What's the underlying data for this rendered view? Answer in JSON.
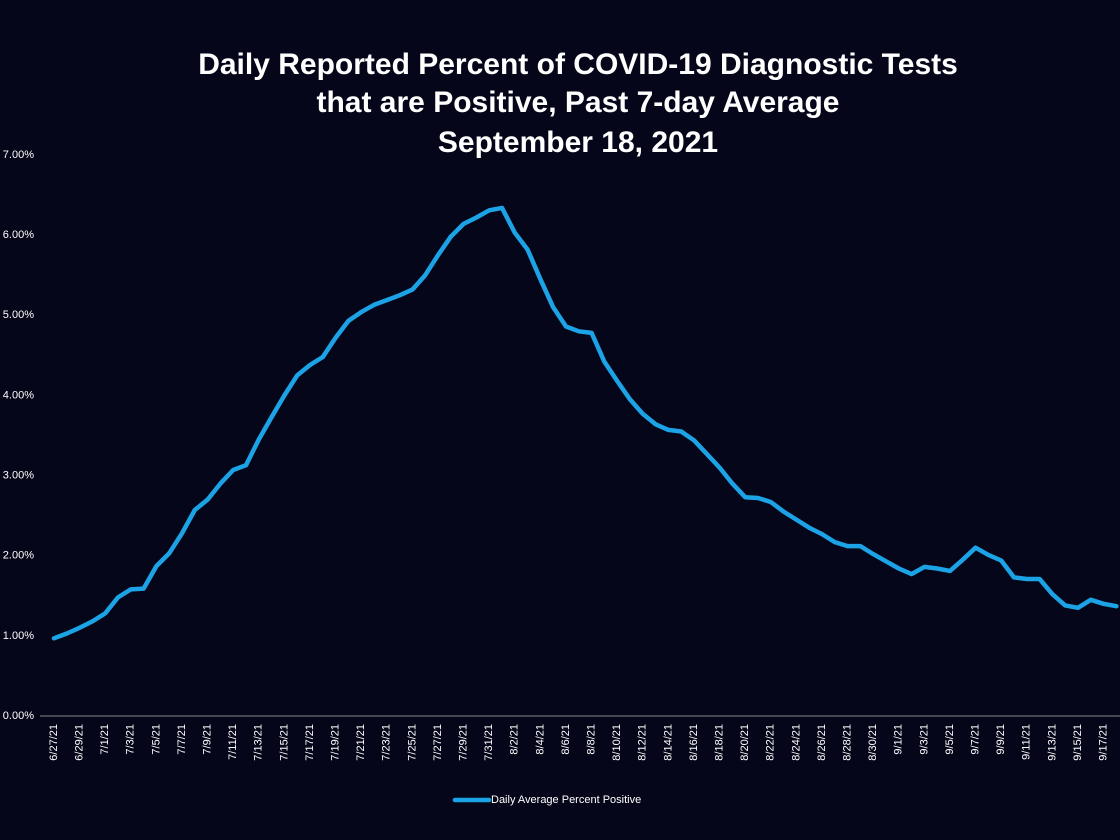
{
  "chart_data": {
    "type": "line",
    "title": [
      "Daily Reported Percent of COVID-19 Diagnostic Tests",
      "that are Positive, Past 7-day Average"
    ],
    "subtitle": "September 18, 2021",
    "categories": [
      "6/27/21",
      null,
      "6/29/21",
      null,
      "7/1/21",
      null,
      "7/3/21",
      null,
      "7/5/21",
      null,
      "7/7/21",
      null,
      "7/9/21",
      null,
      "7/11/21",
      null,
      "7/13/21",
      null,
      "7/15/21",
      null,
      "7/17/21",
      null,
      "7/19/21",
      null,
      "7/21/21",
      null,
      "7/23/21",
      null,
      "7/25/21",
      null,
      "7/27/21",
      null,
      "7/29/21",
      null,
      "7/31/21",
      null,
      "8/2/21",
      null,
      "8/4/21",
      null,
      "8/6/21",
      null,
      "8/8/21",
      null,
      "8/10/21",
      null,
      "8/12/21",
      null,
      "8/14/21",
      null,
      "8/16/21",
      null,
      "8/18/21",
      null,
      "8/20/21",
      null,
      "8/22/21",
      null,
      "8/24/21",
      null,
      "8/26/21",
      null,
      "8/28/21",
      null,
      "8/30/21",
      null,
      "9/1/21",
      null,
      "9/3/21",
      null,
      "9/5/21",
      null,
      "9/7/21",
      null,
      "9/9/21",
      null,
      "9/11/21",
      null,
      "9/13/21",
      null,
      "9/15/21",
      null,
      "9/17/21",
      null
    ],
    "series": [
      {
        "name": "Daily Average Percent Positive",
        "color": "#1ca3e6",
        "values": [
          0.97,
          1.03,
          1.1,
          1.18,
          1.28,
          1.48,
          1.58,
          1.59,
          1.87,
          2.03,
          2.28,
          2.57,
          2.7,
          2.9,
          3.07,
          3.13,
          3.45,
          3.73,
          4.0,
          4.25,
          4.38,
          4.48,
          4.72,
          4.93,
          5.04,
          5.13,
          5.19,
          5.25,
          5.32,
          5.5,
          5.75,
          5.98,
          6.14,
          6.22,
          6.31,
          6.34,
          6.03,
          5.82,
          5.45,
          5.1,
          4.86,
          4.8,
          4.78,
          4.42,
          4.18,
          3.95,
          3.77,
          3.64,
          3.57,
          3.55,
          3.44,
          3.27,
          3.1,
          2.9,
          2.73,
          2.72,
          2.67,
          2.55,
          2.45,
          2.35,
          2.27,
          2.17,
          2.12,
          2.12,
          2.02,
          1.93,
          1.84,
          1.77,
          1.86,
          1.84,
          1.81,
          1.95,
          2.1,
          2.01,
          1.94,
          1.73,
          1.71,
          1.71,
          1.52,
          1.38,
          1.35,
          1.45,
          1.4,
          1.37
        ]
      }
    ],
    "ylim": [
      0,
      7
    ],
    "yticks": [
      {
        "value": 0,
        "label": "0.00%"
      },
      {
        "value": 1,
        "label": "1.00%"
      },
      {
        "value": 2,
        "label": "2.00%"
      },
      {
        "value": 3,
        "label": "3.00%"
      },
      {
        "value": 4,
        "label": "4.00%"
      },
      {
        "value": 5,
        "label": "5.00%"
      },
      {
        "value": 6,
        "label": "6.00%"
      },
      {
        "value": 7,
        "label": "7.00%"
      }
    ],
    "grid": false,
    "legend": "bottom"
  }
}
